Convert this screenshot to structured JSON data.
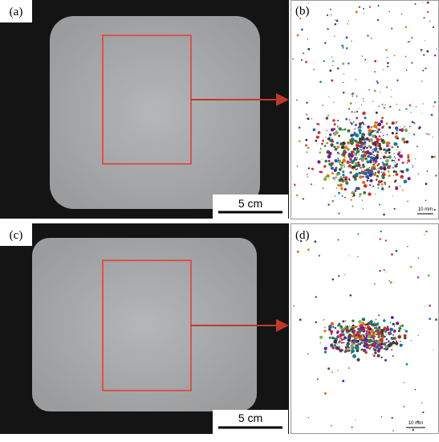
{
  "panels": [
    {
      "label": "(a)",
      "scale_bar": "5 cm"
    },
    {
      "label": "(b)",
      "scale_bar": "10 mm"
    },
    {
      "label": "(c)",
      "scale_bar": "5 cm"
    },
    {
      "label": "(d)",
      "scale_bar": "10 mm"
    }
  ]
}
